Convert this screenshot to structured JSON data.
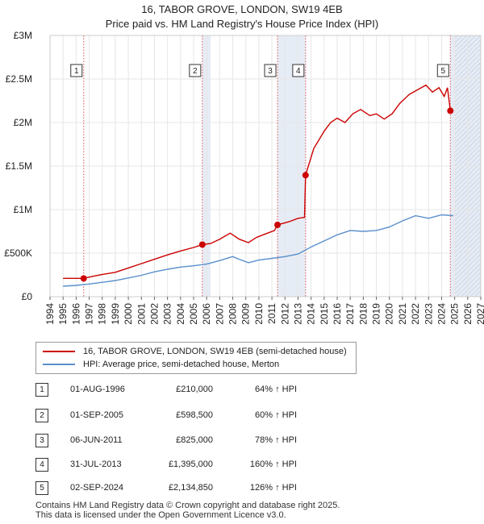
{
  "title_line1": "16, TABOR GROVE, LONDON, SW19 4EB",
  "title_line2": "Price paid vs. HM Land Registry's House Price Index (HPI)",
  "chart_data": {
    "type": "line",
    "xlim": [
      1994,
      2027
    ],
    "ylim": [
      0,
      3000000
    ],
    "y_ticks": [
      {
        "value": 0,
        "label": "£0"
      },
      {
        "value": 500000,
        "label": "£500K"
      },
      {
        "value": 1000000,
        "label": "£1M"
      },
      {
        "value": 1500000,
        "label": "£1.5M"
      },
      {
        "value": 2000000,
        "label": "£2M"
      },
      {
        "value": 2500000,
        "label": "£2.5M"
      },
      {
        "value": 3000000,
        "label": "£3M"
      }
    ],
    "x_ticks": [
      "1994",
      "1995",
      "1996",
      "1997",
      "1998",
      "1999",
      "2000",
      "2001",
      "2002",
      "2003",
      "2004",
      "2005",
      "2006",
      "2007",
      "2008",
      "2009",
      "2010",
      "2011",
      "2012",
      "2013",
      "2014",
      "2015",
      "2016",
      "2017",
      "2018",
      "2019",
      "2020",
      "2021",
      "2022",
      "2023",
      "2024",
      "2025",
      "2026",
      "2027"
    ],
    "shaded_periods": [
      [
        2005.67,
        2006.3
      ],
      [
        2011.43,
        2013.58
      ],
      [
        2024.67,
        2027
      ]
    ],
    "series": [
      {
        "name": "16, TABOR GROVE, LONDON, SW19 4EB (semi-detached house)",
        "color": "#cc0000",
        "points": [
          [
            1995.0,
            210000
          ],
          [
            1996.58,
            210000
          ],
          [
            1997,
            225000
          ],
          [
            1998,
            255000
          ],
          [
            1999,
            280000
          ],
          [
            2000,
            330000
          ],
          [
            2001,
            380000
          ],
          [
            2002,
            430000
          ],
          [
            2003,
            480000
          ],
          [
            2004,
            525000
          ],
          [
            2005,
            565000
          ],
          [
            2005.67,
            598500
          ],
          [
            2006.3,
            610000
          ],
          [
            2007,
            660000
          ],
          [
            2007.8,
            730000
          ],
          [
            2008.5,
            660000
          ],
          [
            2009.2,
            620000
          ],
          [
            2009.8,
            680000
          ],
          [
            2010.5,
            720000
          ],
          [
            2011.2,
            760000
          ],
          [
            2011.43,
            825000
          ],
          [
            2012.3,
            860000
          ],
          [
            2013.0,
            900000
          ],
          [
            2013.5,
            910000
          ],
          [
            2013.58,
            1395000
          ],
          [
            2014.2,
            1700000
          ],
          [
            2015.0,
            1900000
          ],
          [
            2015.5,
            2000000
          ],
          [
            2016.0,
            2050000
          ],
          [
            2016.6,
            2000000
          ],
          [
            2017.2,
            2100000
          ],
          [
            2017.8,
            2150000
          ],
          [
            2018.5,
            2080000
          ],
          [
            2019.0,
            2100000
          ],
          [
            2019.6,
            2040000
          ],
          [
            2020.2,
            2100000
          ],
          [
            2020.8,
            2220000
          ],
          [
            2021.5,
            2320000
          ],
          [
            2022.2,
            2380000
          ],
          [
            2022.8,
            2430000
          ],
          [
            2023.3,
            2350000
          ],
          [
            2023.8,
            2400000
          ],
          [
            2024.2,
            2300000
          ],
          [
            2024.45,
            2400000
          ],
          [
            2024.67,
            2134850
          ],
          [
            2024.9,
            2120000
          ]
        ]
      },
      {
        "name": "HPI: Average price, semi-detached house, Merton",
        "color": "#5a8fcc",
        "points": [
          [
            1995.0,
            120000
          ],
          [
            1996,
            130000
          ],
          [
            1997,
            145000
          ],
          [
            1998,
            165000
          ],
          [
            1999,
            185000
          ],
          [
            2000,
            215000
          ],
          [
            2001,
            245000
          ],
          [
            2002,
            285000
          ],
          [
            2003,
            315000
          ],
          [
            2004,
            340000
          ],
          [
            2005,
            355000
          ],
          [
            2006,
            375000
          ],
          [
            2007,
            415000
          ],
          [
            2008,
            460000
          ],
          [
            2008.5,
            430000
          ],
          [
            2009.2,
            390000
          ],
          [
            2010,
            420000
          ],
          [
            2011,
            440000
          ],
          [
            2012,
            460000
          ],
          [
            2013,
            490000
          ],
          [
            2014,
            570000
          ],
          [
            2015,
            640000
          ],
          [
            2016,
            710000
          ],
          [
            2017,
            760000
          ],
          [
            2018,
            750000
          ],
          [
            2019,
            760000
          ],
          [
            2020,
            800000
          ],
          [
            2021,
            870000
          ],
          [
            2022,
            930000
          ],
          [
            2023,
            900000
          ],
          [
            2024,
            940000
          ],
          [
            2024.9,
            930000
          ]
        ]
      }
    ],
    "sales": [
      {
        "label": "1",
        "x": 1996.58,
        "y": 210000
      },
      {
        "label": "2",
        "x": 2005.67,
        "y": 598500
      },
      {
        "label": "3",
        "x": 2011.43,
        "y": 825000
      },
      {
        "label": "4",
        "x": 2013.58,
        "y": 1395000
      },
      {
        "label": "5",
        "x": 2024.67,
        "y": 2134850
      }
    ]
  },
  "legend": {
    "property_label": "16, TABOR GROVE, LONDON, SW19 4EB (semi-detached house)",
    "hpi_label": "HPI: Average price, semi-detached house, Merton",
    "property_color": "#cc0000",
    "hpi_color": "#5a8fcc"
  },
  "transactions": [
    {
      "num": "1",
      "date": "01-AUG-1996",
      "price": "£210,000",
      "hpi": "64% ↑ HPI"
    },
    {
      "num": "2",
      "date": "01-SEP-2005",
      "price": "£598,500",
      "hpi": "60% ↑ HPI"
    },
    {
      "num": "3",
      "date": "06-JUN-2011",
      "price": "£825,000",
      "hpi": "78% ↑ HPI"
    },
    {
      "num": "4",
      "date": "31-JUL-2013",
      "price": "£1,395,000",
      "hpi": "160% ↑ HPI"
    },
    {
      "num": "5",
      "date": "02-SEP-2024",
      "price": "£2,134,850",
      "hpi": "126% ↑ HPI"
    }
  ],
  "footer": {
    "line1": "Contains HM Land Registry data © Crown copyright and database right 2025.",
    "line2": "This data is licensed under the Open Government Licence v3.0."
  }
}
